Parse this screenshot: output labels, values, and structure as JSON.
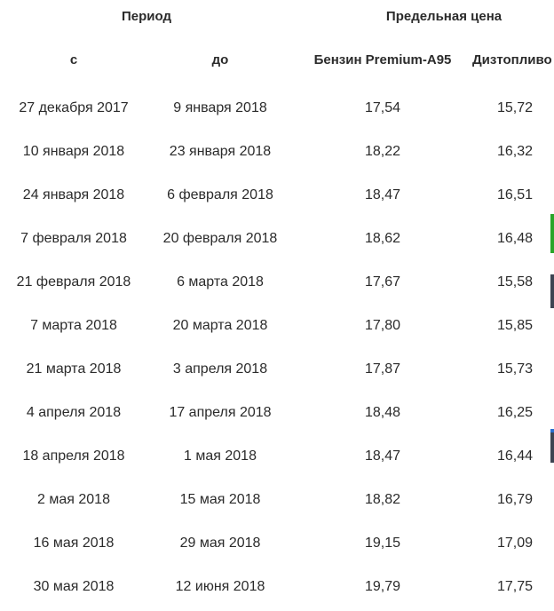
{
  "headers": {
    "period": "Период",
    "max_price": "Предельная цена",
    "from": "с",
    "to": "до",
    "petrol": "Бензин Premium-A95",
    "diesel": "Дизтопливо"
  },
  "rows": [
    {
      "from": "27 декабря 2017",
      "to": "9 января 2018",
      "petrol": "17,54",
      "diesel": "15,72"
    },
    {
      "from": "10 января 2018",
      "to": "23 января 2018",
      "petrol": "18,22",
      "diesel": "16,32"
    },
    {
      "from": "24 января 2018",
      "to": "6 февраля 2018",
      "petrol": "18,47",
      "diesel": "16,51"
    },
    {
      "from": "7 февраля 2018",
      "to": "20 февраля 2018",
      "petrol": "18,62",
      "diesel": "16,48"
    },
    {
      "from": "21 февраля 2018",
      "to": "6 марта 2018",
      "petrol": "17,67",
      "diesel": "15,58"
    },
    {
      "from": "7 марта 2018",
      "to": "20 марта 2018",
      "petrol": "17,80",
      "diesel": "15,85"
    },
    {
      "from": "21 марта 2018",
      "to": "3 апреля 2018",
      "petrol": "17,87",
      "diesel": "15,73"
    },
    {
      "from": "4 апреля 2018",
      "to": "17 апреля 2018",
      "petrol": "18,48",
      "diesel": "16,25"
    },
    {
      "from": "18 апреля 2018",
      "to": "1 мая 2018",
      "petrol": "18,47",
      "diesel": "16,44"
    },
    {
      "from": "2 мая 2018",
      "to": "15 мая 2018",
      "petrol": "18,82",
      "diesel": "16,79"
    },
    {
      "from": "16 мая 2018",
      "to": "29 мая 2018",
      "petrol": "19,15",
      "diesel": "17,09"
    },
    {
      "from": "30 мая 2018",
      "to": "12 июня 2018",
      "petrol": "19,79",
      "diesel": "17,75"
    }
  ],
  "colors": {
    "text": "#2b2b2b",
    "edge_green": "#2aa52a",
    "edge_dark": "#3d4452",
    "edge_blue": "#2a6fd0"
  }
}
